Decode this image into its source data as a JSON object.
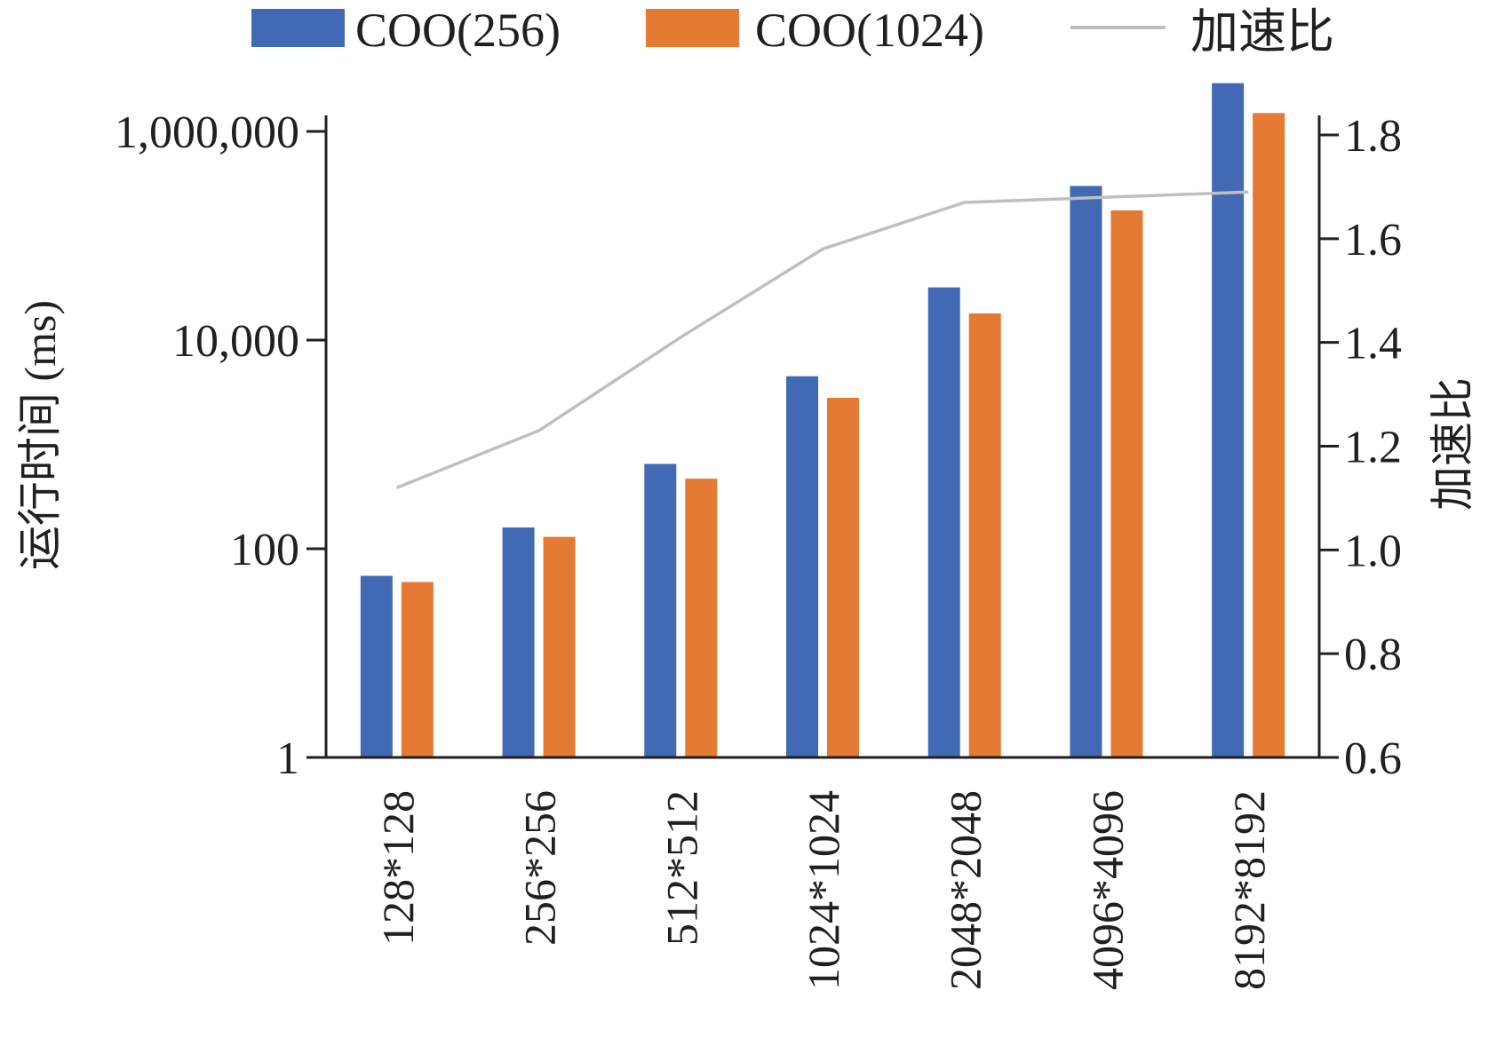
{
  "chart_data": {
    "type": "bar",
    "categories": [
      "128*128",
      "256*256",
      "512*512",
      "1024*1024",
      "2048*2048",
      "4096*4096",
      "8192*8192"
    ],
    "series": [
      {
        "name": "COO(256)",
        "color": "#4169b4",
        "values": [
          55,
          160,
          650,
          4500,
          32000,
          300000,
          2900000
        ]
      },
      {
        "name": "COO(1024)",
        "color": "#e57a35",
        "values": [
          48,
          130,
          470,
          2800,
          18000,
          175000,
          1500000
        ]
      }
    ],
    "line_series": {
      "name": "加速比",
      "color": "#bfbfbf",
      "values": [
        1.12,
        1.23,
        1.41,
        1.58,
        1.67,
        1.68,
        1.69
      ]
    },
    "ylabel": "运行时间 (ms)",
    "y2label": "加速比",
    "yscale": "log",
    "ylim": [
      1,
      3000000
    ],
    "y_ticks": [
      1,
      100,
      10000,
      1000000
    ],
    "y_tick_labels": [
      "1",
      "100",
      "10,000",
      "1,000,000"
    ],
    "y2lim": [
      0.6,
      1.86
    ],
    "y2_ticks": [
      0.6,
      0.8,
      1.0,
      1.2,
      1.4,
      1.6,
      1.8
    ],
    "y2_tick_labels": [
      "0.6",
      "0.8",
      "1.0",
      "1.2",
      "1.4",
      "1.6",
      "1.8"
    ],
    "legend_position": "top",
    "grid": false
  }
}
